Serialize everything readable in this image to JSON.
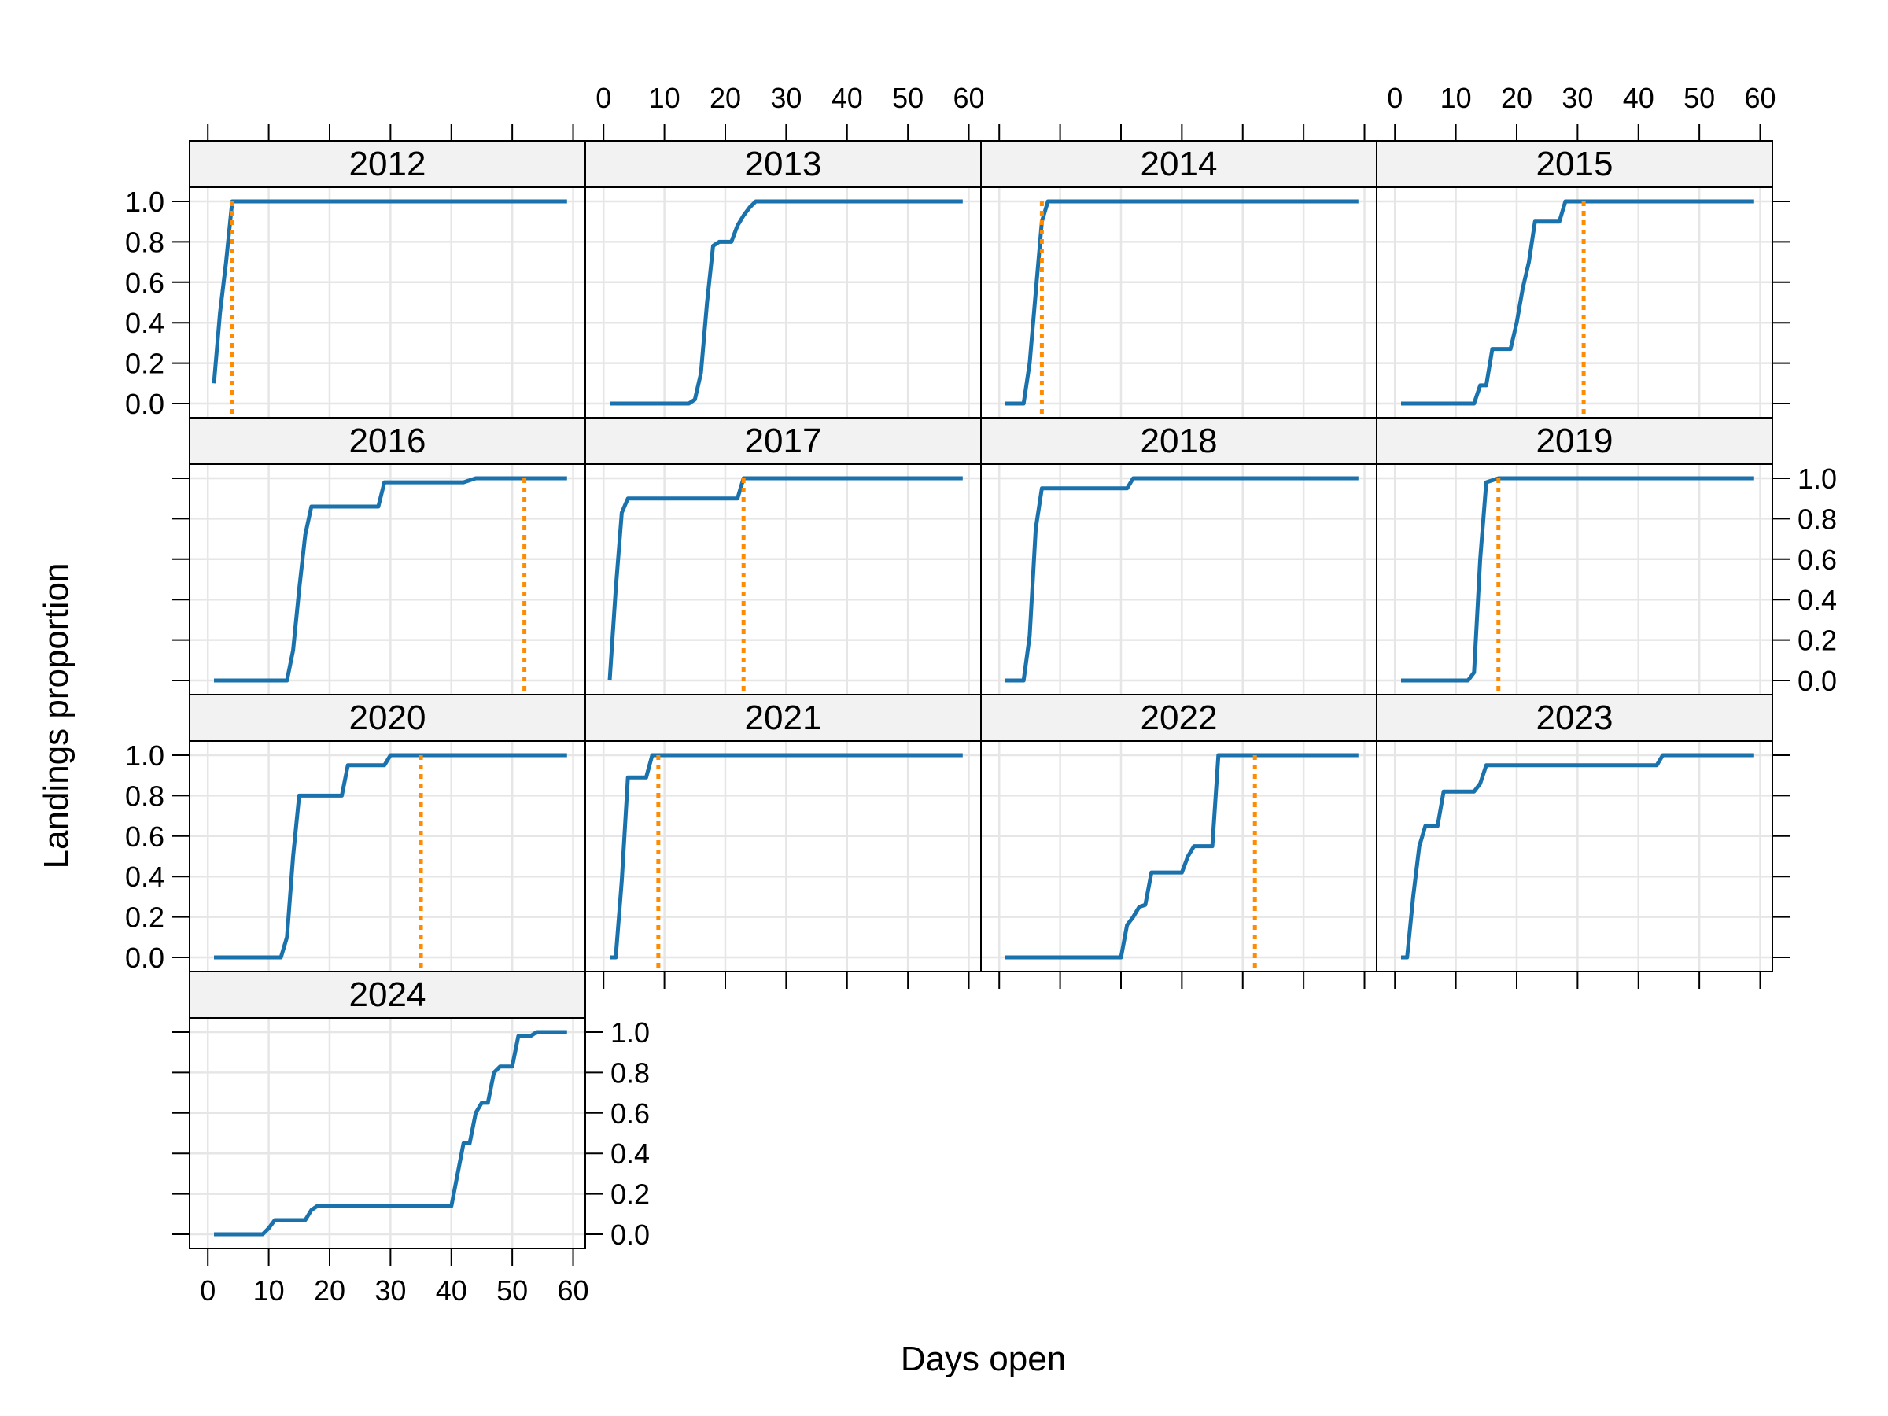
{
  "chart_data": {
    "type": "line",
    "layout": "lattice-facets-4x4",
    "xlabel": "Days open",
    "ylabel": "Landings proportion",
    "xlim": [
      -3,
      62
    ],
    "ylim": [
      -0.07,
      1.07
    ],
    "x_ticks": [
      0,
      10,
      20,
      30,
      40,
      50,
      60
    ],
    "y_ticks": [
      0.0,
      0.2,
      0.4,
      0.6,
      0.8,
      1.0
    ],
    "y_tick_labels": [
      "0.0",
      "0.2",
      "0.4",
      "0.6",
      "0.8",
      "1.0"
    ],
    "grid": true,
    "colors": {
      "curve": "#1a72ad",
      "marker": "#ff8c00",
      "strip": "#f2f2f2",
      "grid": "#e6e6e6",
      "frame": "#000000"
    },
    "panels": [
      {
        "label": "2012",
        "marker": 4,
        "points": [
          [
            1,
            0.1
          ],
          [
            2,
            0.45
          ],
          [
            3,
            0.7
          ],
          [
            4,
            1.0
          ],
          [
            59,
            1.0
          ]
        ]
      },
      {
        "label": "2013",
        "marker": null,
        "points": [
          [
            1,
            0.0
          ],
          [
            14,
            0.0
          ],
          [
            15,
            0.02
          ],
          [
            16,
            0.15
          ],
          [
            17,
            0.5
          ],
          [
            18,
            0.78
          ],
          [
            19,
            0.8
          ],
          [
            21,
            0.8
          ],
          [
            22,
            0.88
          ],
          [
            23,
            0.93
          ],
          [
            24,
            0.97
          ],
          [
            25,
            1.0
          ],
          [
            59,
            1.0
          ]
        ]
      },
      {
        "label": "2014",
        "marker": 7,
        "points": [
          [
            1,
            0.0
          ],
          [
            4,
            0.0
          ],
          [
            5,
            0.2
          ],
          [
            6,
            0.55
          ],
          [
            7,
            0.9
          ],
          [
            8,
            1.0
          ],
          [
            59,
            1.0
          ]
        ]
      },
      {
        "label": "2015",
        "marker": 31,
        "points": [
          [
            1,
            0.0
          ],
          [
            13,
            0.0
          ],
          [
            14,
            0.09
          ],
          [
            15,
            0.09
          ],
          [
            16,
            0.27
          ],
          [
            19,
            0.27
          ],
          [
            20,
            0.4
          ],
          [
            21,
            0.57
          ],
          [
            22,
            0.7
          ],
          [
            23,
            0.9
          ],
          [
            27,
            0.9
          ],
          [
            28,
            1.0
          ],
          [
            59,
            1.0
          ]
        ]
      },
      {
        "label": "2016",
        "marker": 52,
        "points": [
          [
            1,
            0.0
          ],
          [
            13,
            0.0
          ],
          [
            14,
            0.15
          ],
          [
            15,
            0.45
          ],
          [
            16,
            0.72
          ],
          [
            17,
            0.86
          ],
          [
            28,
            0.86
          ],
          [
            29,
            0.98
          ],
          [
            42,
            0.98
          ],
          [
            44,
            1.0
          ],
          [
            59,
            1.0
          ]
        ]
      },
      {
        "label": "2017",
        "marker": 23,
        "points": [
          [
            1,
            0.0
          ],
          [
            2,
            0.45
          ],
          [
            3,
            0.83
          ],
          [
            4,
            0.9
          ],
          [
            22,
            0.9
          ],
          [
            23,
            1.0
          ],
          [
            59,
            1.0
          ]
        ]
      },
      {
        "label": "2018",
        "marker": null,
        "points": [
          [
            1,
            0.0
          ],
          [
            4,
            0.0
          ],
          [
            5,
            0.22
          ],
          [
            6,
            0.75
          ],
          [
            7,
            0.95
          ],
          [
            21,
            0.95
          ],
          [
            22,
            1.0
          ],
          [
            59,
            1.0
          ]
        ]
      },
      {
        "label": "2019",
        "marker": 17,
        "points": [
          [
            1,
            0.0
          ],
          [
            12,
            0.0
          ],
          [
            13,
            0.04
          ],
          [
            14,
            0.6
          ],
          [
            15,
            0.98
          ],
          [
            17,
            1.0
          ],
          [
            59,
            1.0
          ]
        ]
      },
      {
        "label": "2020",
        "marker": 35,
        "points": [
          [
            1,
            0.0
          ],
          [
            12,
            0.0
          ],
          [
            13,
            0.1
          ],
          [
            14,
            0.5
          ],
          [
            15,
            0.8
          ],
          [
            22,
            0.8
          ],
          [
            23,
            0.95
          ],
          [
            29,
            0.95
          ],
          [
            30,
            1.0
          ],
          [
            59,
            1.0
          ]
        ]
      },
      {
        "label": "2021",
        "marker": 9,
        "points": [
          [
            1,
            0.0
          ],
          [
            2,
            0.0
          ],
          [
            3,
            0.38
          ],
          [
            4,
            0.89
          ],
          [
            7,
            0.89
          ],
          [
            8,
            1.0
          ],
          [
            59,
            1.0
          ]
        ]
      },
      {
        "label": "2022",
        "marker": 42,
        "points": [
          [
            1,
            0.0
          ],
          [
            10,
            0.0
          ],
          [
            20,
            0.0
          ],
          [
            21,
            0.16
          ],
          [
            22,
            0.2
          ],
          [
            23,
            0.25
          ],
          [
            24,
            0.26
          ],
          [
            25,
            0.42
          ],
          [
            30,
            0.42
          ],
          [
            31,
            0.5
          ],
          [
            32,
            0.55
          ],
          [
            35,
            0.55
          ],
          [
            36,
            1.0
          ],
          [
            59,
            1.0
          ]
        ]
      },
      {
        "label": "2023",
        "marker": null,
        "points": [
          [
            1,
            0.0
          ],
          [
            2,
            0.0
          ],
          [
            3,
            0.3
          ],
          [
            4,
            0.55
          ],
          [
            5,
            0.65
          ],
          [
            7,
            0.65
          ],
          [
            8,
            0.82
          ],
          [
            13,
            0.82
          ],
          [
            14,
            0.86
          ],
          [
            15,
            0.95
          ],
          [
            43,
            0.95
          ],
          [
            44,
            1.0
          ],
          [
            59,
            1.0
          ]
        ]
      },
      {
        "label": "2024",
        "marker": null,
        "points": [
          [
            1,
            0.0
          ],
          [
            9,
            0.0
          ],
          [
            10,
            0.03
          ],
          [
            11,
            0.07
          ],
          [
            16,
            0.07
          ],
          [
            17,
            0.12
          ],
          [
            18,
            0.14
          ],
          [
            40,
            0.14
          ],
          [
            42,
            0.45
          ],
          [
            43,
            0.45
          ],
          [
            44,
            0.6
          ],
          [
            45,
            0.65
          ],
          [
            46,
            0.65
          ],
          [
            47,
            0.8
          ],
          [
            48,
            0.83
          ],
          [
            50,
            0.83
          ],
          [
            51,
            0.98
          ],
          [
            53,
            0.98
          ],
          [
            54,
            1.0
          ],
          [
            59,
            1.0
          ]
        ]
      }
    ]
  }
}
